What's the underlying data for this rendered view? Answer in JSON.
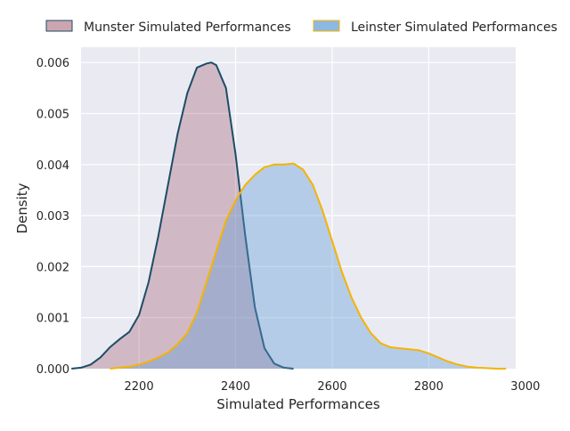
{
  "chart_data": {
    "type": "area",
    "xlabel": "Simulated Performances",
    "ylabel": "Density",
    "xlim": [
      2080,
      2980
    ],
    "ylim": [
      0,
      0.0063
    ],
    "x_ticks": [
      2200,
      2400,
      2600,
      2800,
      3000
    ],
    "y_ticks": [
      0.0,
      0.001,
      0.002,
      0.003,
      0.004,
      0.005,
      0.006
    ],
    "x_tick_labels": [
      "2200",
      "2400",
      "2600",
      "2800",
      "3000"
    ],
    "y_tick_labels": [
      "0.000",
      "0.001",
      "0.002",
      "0.003",
      "0.004",
      "0.005",
      "0.006"
    ],
    "grid": true,
    "legend_position": "top-center",
    "series": [
      {
        "name": "Munster Simulated Performances",
        "fill": "#8c3a52",
        "line": "#1d4d66",
        "points": [
          [
            2060,
            0.0
          ],
          [
            2080,
            2e-05
          ],
          [
            2100,
            8e-05
          ],
          [
            2120,
            0.00022
          ],
          [
            2140,
            0.00042
          ],
          [
            2160,
            0.00058
          ],
          [
            2180,
            0.00072
          ],
          [
            2200,
            0.00105
          ],
          [
            2220,
            0.0017
          ],
          [
            2240,
            0.0026
          ],
          [
            2260,
            0.0036
          ],
          [
            2280,
            0.0046
          ],
          [
            2300,
            0.0054
          ],
          [
            2320,
            0.0059
          ],
          [
            2340,
            0.00598
          ],
          [
            2350,
            0.006
          ],
          [
            2360,
            0.00595
          ],
          [
            2380,
            0.0055
          ],
          [
            2400,
            0.0042
          ],
          [
            2420,
            0.0026
          ],
          [
            2440,
            0.0012
          ],
          [
            2460,
            0.0004
          ],
          [
            2480,
            0.0001
          ],
          [
            2500,
            2e-05
          ],
          [
            2520,
            0.0
          ]
        ]
      },
      {
        "name": "Leinster Simulated Performances",
        "fill": "#5b9bd5",
        "line": "#f4b400",
        "points": [
          [
            2140,
            0.0
          ],
          [
            2160,
            2e-05
          ],
          [
            2180,
            4e-05
          ],
          [
            2200,
            8e-05
          ],
          [
            2220,
            0.00014
          ],
          [
            2240,
            0.00022
          ],
          [
            2260,
            0.00032
          ],
          [
            2280,
            0.00048
          ],
          [
            2300,
            0.0007
          ],
          [
            2320,
            0.0011
          ],
          [
            2340,
            0.0017
          ],
          [
            2360,
            0.0023
          ],
          [
            2380,
            0.0029
          ],
          [
            2400,
            0.0033
          ],
          [
            2420,
            0.0036
          ],
          [
            2440,
            0.0038
          ],
          [
            2460,
            0.00395
          ],
          [
            2480,
            0.004
          ],
          [
            2500,
            0.004
          ],
          [
            2520,
            0.00402
          ],
          [
            2540,
            0.0039
          ],
          [
            2560,
            0.0036
          ],
          [
            2580,
            0.0031
          ],
          [
            2600,
            0.0025
          ],
          [
            2620,
            0.0019
          ],
          [
            2640,
            0.0014
          ],
          [
            2660,
            0.001
          ],
          [
            2680,
            0.0007
          ],
          [
            2700,
            0.0005
          ],
          [
            2720,
            0.00042
          ],
          [
            2740,
            0.0004
          ],
          [
            2760,
            0.00038
          ],
          [
            2780,
            0.00036
          ],
          [
            2800,
            0.0003
          ],
          [
            2820,
            0.00022
          ],
          [
            2840,
            0.00014
          ],
          [
            2860,
            8e-05
          ],
          [
            2880,
            4e-05
          ],
          [
            2900,
            2e-05
          ],
          [
            2920,
            1e-05
          ],
          [
            2940,
            0.0
          ],
          [
            2960,
            0.0
          ]
        ]
      }
    ]
  }
}
